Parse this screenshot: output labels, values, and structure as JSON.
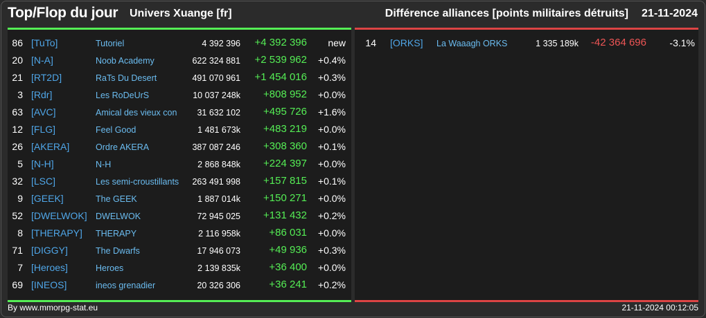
{
  "header": {
    "title": "Top/Flop du jour",
    "universe": "Univers Xuange [fr]",
    "category": "Différence alliances [points militaires détruits]",
    "date": "21-11-2024"
  },
  "colors": {
    "top_accent": "#55ee55",
    "flop_accent": "#dd4444",
    "tag": "#4fa6e8",
    "name": "#6bbcf0",
    "positive": "#55ee55",
    "negative": "#ee5555"
  },
  "top": [
    {
      "rank": "86",
      "tag": "[TuTo]",
      "name": "Tutoriel",
      "points": "4 392 396",
      "diff": "+4 392 396",
      "pct": "new"
    },
    {
      "rank": "20",
      "tag": "[N-A]",
      "name": "Noob Academy",
      "points": "622 324 881",
      "diff": "+2 539 962",
      "pct": "+0.4%"
    },
    {
      "rank": "21",
      "tag": "[RT2D]",
      "name": "RaTs Du Desert",
      "points": "491 070 961",
      "diff": "+1 454 016",
      "pct": "+0.3%"
    },
    {
      "rank": "3",
      "tag": "[Rdr]",
      "name": "Les RoDeUrS",
      "points": "10 037 248k",
      "diff": "+808 952",
      "pct": "+0.0%"
    },
    {
      "rank": "63",
      "tag": "[AVC]",
      "name": "Amical des vieux con",
      "points": "31 632 102",
      "diff": "+495 726",
      "pct": "+1.6%"
    },
    {
      "rank": "12",
      "tag": "[FLG]",
      "name": "Feel Good",
      "points": "1 481 673k",
      "diff": "+483 219",
      "pct": "+0.0%"
    },
    {
      "rank": "26",
      "tag": "[AKERA]",
      "name": "Ordre AKERA",
      "points": "387 087 246",
      "diff": "+308 360",
      "pct": "+0.1%"
    },
    {
      "rank": "5",
      "tag": "[N-H]",
      "name": "N-H",
      "points": "2 868 848k",
      "diff": "+224 397",
      "pct": "+0.0%"
    },
    {
      "rank": "32",
      "tag": "[LSC]",
      "name": "Les semi-croustillants",
      "points": "263 491 998",
      "diff": "+157 815",
      "pct": "+0.1%"
    },
    {
      "rank": "9",
      "tag": "[GEEK]",
      "name": "The GEEK",
      "points": "1 887 014k",
      "diff": "+150 271",
      "pct": "+0.0%"
    },
    {
      "rank": "52",
      "tag": "[DWELWOK]",
      "name": "DWELWOK",
      "points": "72 945 025",
      "diff": "+131 432",
      "pct": "+0.2%"
    },
    {
      "rank": "8",
      "tag": "[THERAPY]",
      "name": "THERAPY",
      "points": "2 116 958k",
      "diff": "+86 031",
      "pct": "+0.0%"
    },
    {
      "rank": "71",
      "tag": "[DIGGY]",
      "name": "The Dwarfs",
      "points": "17 946 073",
      "diff": "+49 936",
      "pct": "+0.3%"
    },
    {
      "rank": "7",
      "tag": "[Heroes]",
      "name": "Heroes",
      "points": "2 139 835k",
      "diff": "+36 400",
      "pct": "+0.0%"
    },
    {
      "rank": "69",
      "tag": "[INEOS]",
      "name": "ineos grenadier",
      "points": "20 326 306",
      "diff": "+36 241",
      "pct": "+0.2%"
    }
  ],
  "flop": [
    {
      "rank": "14",
      "tag": "[ORKS]",
      "name": "La Waaagh ORKS",
      "points": "1 335 189k",
      "diff": "-42 364 696",
      "pct": "-3.1%"
    }
  ],
  "footer": {
    "source": "By www.mmorpg-stat.eu",
    "generated": "21-11-2024 00:12:05"
  }
}
